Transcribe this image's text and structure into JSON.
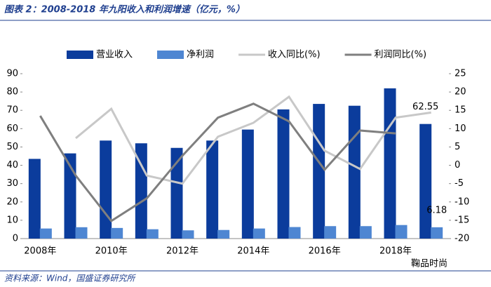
{
  "chart_data": {
    "type": "bar",
    "title": "图表 2：2008-2018 年九阳收入和利润增速（亿元，%）",
    "source": "资料来源：Wind，国盛证券研究所",
    "watermark": "鞠品时尚",
    "categories": [
      "2008年",
      null,
      "2010年",
      null,
      "2012年",
      null,
      "2014年",
      null,
      "2016年",
      null,
      "2018年",
      null
    ],
    "series": [
      {
        "name": "营业收入",
        "type": "bar",
        "color": "#0b3c9c",
        "values": [
          43.5,
          46.5,
          53.5,
          52,
          49.5,
          53.5,
          59.5,
          70.5,
          73.5,
          72.5,
          82,
          62.55
        ]
      },
      {
        "name": "净利润",
        "type": "bar",
        "color": "#4e86d2",
        "values": [
          5.5,
          6.2,
          5.8,
          5.1,
          4.5,
          4.7,
          5.5,
          6.3,
          6.8,
          6.8,
          7.4,
          6.18
        ]
      },
      {
        "name": "收入同比(%)",
        "type": "line",
        "axis": "y2",
        "color": "#c8c8c8",
        "values": [
          null,
          7.4,
          15.4,
          -2.8,
          -5.0,
          7.8,
          11.6,
          18.7,
          4,
          -1,
          13,
          14.4
        ]
      },
      {
        "name": "利润同比(%)",
        "type": "line",
        "axis": "y2",
        "color": "#7f7f7f",
        "values": [
          13.5,
          -2.8,
          -15.2,
          -9,
          2.6,
          13,
          16.8,
          12,
          -1.2,
          9.5,
          8.7,
          null
        ]
      }
    ],
    "data_labels": [
      {
        "series": 0,
        "index": 11
      },
      {
        "series": 1,
        "index": 11
      }
    ],
    "ylim": [
      0,
      90
    ],
    "yticks": [
      0,
      10,
      20,
      30,
      40,
      50,
      60,
      70,
      80,
      90
    ],
    "y2lim": [
      -20,
      25
    ],
    "y2ticks": [
      -20,
      -15,
      -10,
      -5,
      0,
      5,
      10,
      15,
      20,
      25
    ],
    "grid": false
  }
}
